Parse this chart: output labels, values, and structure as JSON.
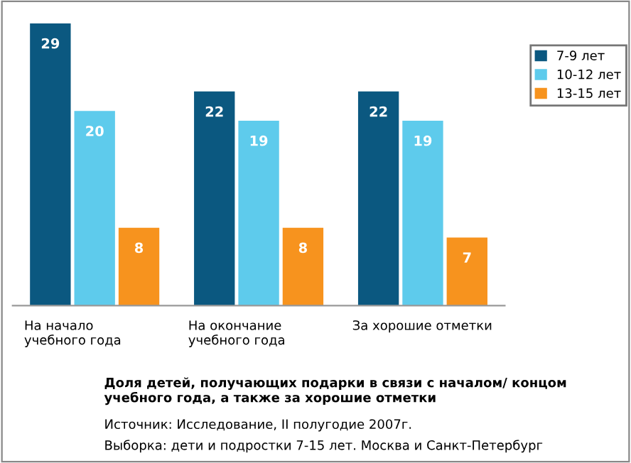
{
  "chart_data": {
    "type": "bar",
    "categories": [
      "На начало\nучебного года",
      "На окончание\nучебного года",
      "За хорошие отметки"
    ],
    "series": [
      {
        "name": "7-9 лет",
        "color": "#0b5880",
        "values": [
          29,
          22,
          22
        ]
      },
      {
        "name": "10-12 лет",
        "color": "#5ecbec",
        "values": [
          20,
          19,
          19
        ]
      },
      {
        "name": "13-15 лет",
        "color": "#f7931e",
        "values": [
          8,
          8,
          7
        ]
      }
    ],
    "data_labels": true,
    "legend": "top right",
    "annotations": [
      "Доля детей, получающих подарки в связи с началом/ концом\nучебного года, а также за хорошие отметки",
      "Источник: Исследование, II полугодие 2007г.",
      "Выборка: дети и подростки 7-15 лет. Москва и Санкт-Петербург"
    ]
  }
}
